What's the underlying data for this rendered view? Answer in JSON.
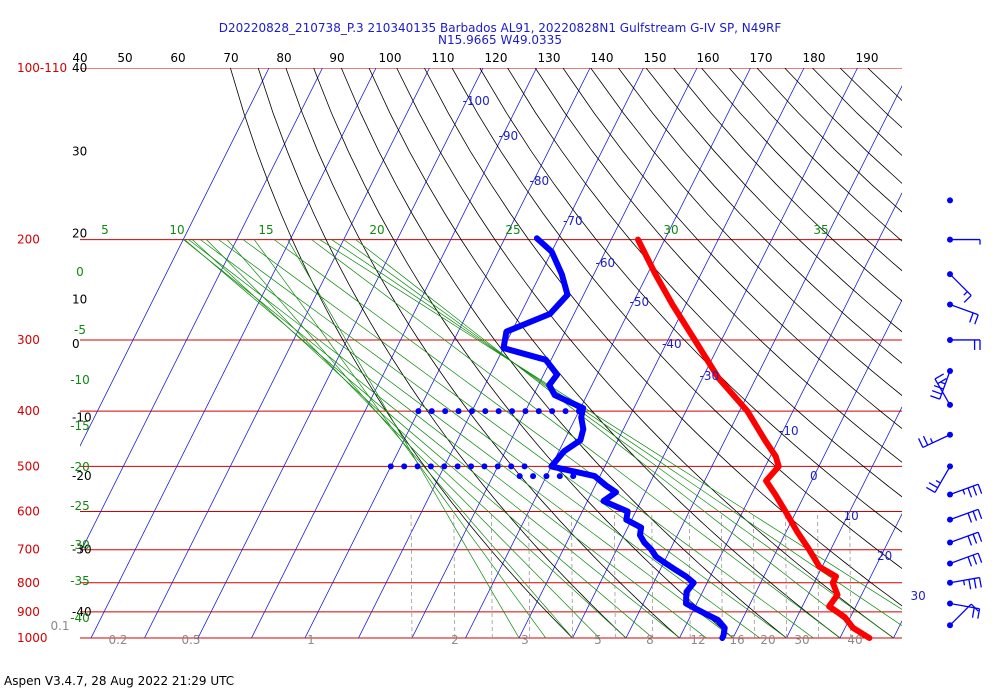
{
  "header": {
    "title_line1": "D20220828_210738_P.3 210340135 Barbados AL91, 20220828N1 Gulfstream G-IV SP, N49RF",
    "title_line2": "N15.9665 W49.0335"
  },
  "footer": {
    "text": "Aspen V3.4.7, 28 Aug 2022  21:29 UTC"
  },
  "chart_data": {
    "type": "skew-t",
    "pressure_labels": [
      {
        "p": 100,
        "text": "100-110"
      },
      {
        "p": 200,
        "text": "200"
      },
      {
        "p": 300,
        "text": "300"
      },
      {
        "p": 400,
        "text": "400"
      },
      {
        "p": 500,
        "text": "500"
      },
      {
        "p": 600,
        "text": "600"
      },
      {
        "p": 700,
        "text": "700"
      },
      {
        "p": 800,
        "text": "800"
      },
      {
        "p": 900,
        "text": "900"
      },
      {
        "p": 1000,
        "text": "1000"
      }
    ],
    "top_temperature_ticks": [
      40,
      50,
      60,
      70,
      80,
      90,
      100,
      110,
      120,
      130,
      140,
      150,
      160,
      170,
      180,
      190
    ],
    "left_altitude_labels": [
      {
        "p": 100,
        "text": "40"
      },
      {
        "p": 140,
        "text": "30"
      },
      {
        "p": 195,
        "text": "20"
      },
      {
        "p": 255,
        "text": "10"
      },
      {
        "p": 305,
        "text": "0"
      },
      {
        "p": 410,
        "text": "-10"
      },
      {
        "p": 520,
        "text": "-20"
      },
      {
        "p": 700,
        "text": "-30"
      },
      {
        "p": 900,
        "text": "-40"
      }
    ],
    "isotherm_labels": [
      "-100",
      "-90",
      "-80",
      "-70",
      "-60",
      "-50",
      "-40",
      "-30",
      "-10",
      "0",
      "10",
      "20",
      "30"
    ],
    "mixing_ratio_labels": [
      "0.1",
      "0.2",
      "0.5",
      "1",
      "2",
      "3",
      "5",
      "8",
      "12",
      "16",
      "20",
      "30",
      "40"
    ],
    "dry_adiabat_labels_top": [
      "5",
      "10",
      "15",
      "20",
      "25",
      "30",
      "35"
    ],
    "dry_adiabat_labels_left": [
      "0",
      "-5",
      "-10",
      "-15",
      "-20",
      "-25",
      "-30",
      "-35",
      "-40"
    ],
    "temperature_profile": [
      [
        200,
        -55.0
      ],
      [
        230,
        -48.5
      ],
      [
        260,
        -42.5
      ],
      [
        300,
        -35.0
      ],
      [
        350,
        -27.0
      ],
      [
        400,
        -18.5
      ],
      [
        450,
        -12.5
      ],
      [
        480,
        -9.0
      ],
      [
        500,
        -7.5
      ],
      [
        530,
        -8.5
      ],
      [
        560,
        -5.5
      ],
      [
        600,
        -2.0
      ],
      [
        650,
        2.0
      ],
      [
        700,
        6.0
      ],
      [
        750,
        9.5
      ],
      [
        780,
        13.5
      ],
      [
        800,
        13.5
      ],
      [
        840,
        15.5
      ],
      [
        880,
        15.0
      ],
      [
        920,
        19.0
      ],
      [
        960,
        21.5
      ],
      [
        1000,
        25.5
      ]
    ],
    "dewpoint_profile": [
      [
        199,
        -74.0
      ],
      [
        210,
        -70.0
      ],
      [
        230,
        -66.0
      ],
      [
        250,
        -63.0
      ],
      [
        270,
        -64.5
      ],
      [
        290,
        -71.0
      ],
      [
        310,
        -70.0
      ],
      [
        325,
        -61.0
      ],
      [
        345,
        -57.5
      ],
      [
        360,
        -58.0
      ],
      [
        375,
        -56.0
      ],
      [
        395,
        -49.5
      ],
      [
        410,
        -49.0
      ],
      [
        430,
        -47.5
      ],
      [
        450,
        -47.0
      ],
      [
        470,
        -49.0
      ],
      [
        500,
        -50.0
      ],
      [
        520,
        -41.0
      ],
      [
        540,
        -38.0
      ],
      [
        555,
        -35.5
      ],
      [
        575,
        -37.0
      ],
      [
        600,
        -31.5
      ],
      [
        620,
        -31.0
      ],
      [
        640,
        -27.5
      ],
      [
        660,
        -27.0
      ],
      [
        680,
        -25.5
      ],
      [
        700,
        -23.5
      ],
      [
        720,
        -22.0
      ],
      [
        740,
        -19.5
      ],
      [
        760,
        -17.0
      ],
      [
        780,
        -14.5
      ],
      [
        800,
        -12.5
      ],
      [
        830,
        -13.0
      ],
      [
        850,
        -12.5
      ],
      [
        870,
        -12.0
      ],
      [
        890,
        -9.5
      ],
      [
        910,
        -7.0
      ],
      [
        930,
        -4.5
      ],
      [
        960,
        -2.5
      ],
      [
        990,
        -2.0
      ],
      [
        1000,
        -2.0
      ]
    ],
    "dewpoint_dropouts": [
      {
        "p": 400,
        "t_from": -80,
        "t_to": -48
      },
      {
        "p": 500,
        "t_from": -80,
        "t_to": -55
      },
      {
        "p": 520,
        "t_from": -55,
        "t_to": -45
      }
    ]
  },
  "wind_barbs": [
    {
      "p": 160,
      "dir": 0,
      "kt": 0
    },
    {
      "p": 200,
      "dir": 90,
      "kt": 5
    },
    {
      "p": 230,
      "dir": 135,
      "kt": 15
    },
    {
      "p": 260,
      "dir": 110,
      "kt": 20
    },
    {
      "p": 300,
      "dir": 90,
      "kt": 20
    },
    {
      "p": 340,
      "dir": 200,
      "kt": 35
    },
    {
      "p": 390,
      "dir": 330,
      "kt": 20
    },
    {
      "p": 440,
      "dir": 245,
      "kt": 25
    },
    {
      "p": 500,
      "dir": 210,
      "kt": 25
    },
    {
      "p": 560,
      "dir": 70,
      "kt": 35
    },
    {
      "p": 620,
      "dir": 70,
      "kt": 30
    },
    {
      "p": 680,
      "dir": 70,
      "kt": 30
    },
    {
      "p": 740,
      "dir": 70,
      "kt": 30
    },
    {
      "p": 800,
      "dir": 80,
      "kt": 35
    },
    {
      "p": 870,
      "dir": 100,
      "kt": 20
    },
    {
      "p": 950,
      "dir": 45,
      "kt": 10
    }
  ]
}
